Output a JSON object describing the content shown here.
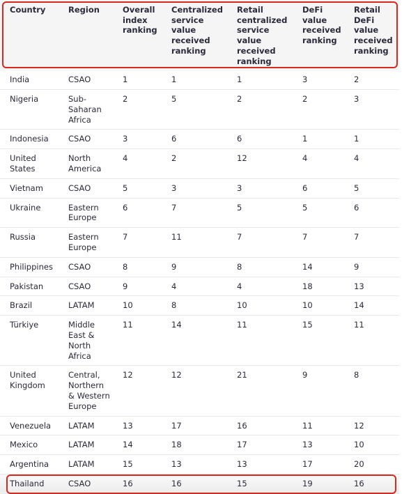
{
  "table": {
    "headers": [
      "Country",
      "Region",
      "Overall index ranking",
      "Centralized service value received ranking",
      "Retail centralized service value received ranking",
      "DeFi value received ranking",
      "Retail DeFi value received ranking"
    ],
    "rows": [
      [
        "India",
        "CSAO",
        "1",
        "1",
        "1",
        "3",
        "2"
      ],
      [
        "Nigeria",
        "Sub-Saharan Africa",
        "2",
        "5",
        "2",
        "2",
        "3"
      ],
      [
        "Indonesia",
        "CSAO",
        "3",
        "6",
        "6",
        "1",
        "1"
      ],
      [
        "United States",
        "North America",
        "4",
        "2",
        "12",
        "4",
        "4"
      ],
      [
        "Vietnam",
        "CSAO",
        "5",
        "3",
        "3",
        "6",
        "5"
      ],
      [
        "Ukraine",
        "Eastern Europe",
        "6",
        "7",
        "5",
        "5",
        "6"
      ],
      [
        "Russia",
        "Eastern Europe",
        "7",
        "11",
        "7",
        "7",
        "7"
      ],
      [
        "Philippines",
        "CSAO",
        "8",
        "9",
        "8",
        "14",
        "9"
      ],
      [
        "Pakistan",
        "CSAO",
        "9",
        "4",
        "4",
        "18",
        "13"
      ],
      [
        "Brazil",
        "LATAM",
        "10",
        "8",
        "10",
        "10",
        "14"
      ],
      [
        "Türkiye",
        "Middle East & North Africa",
        "11",
        "14",
        "11",
        "15",
        "11"
      ],
      [
        "United Kingdom",
        "Central, Northern & Western Europe",
        "12",
        "12",
        "21",
        "9",
        "8"
      ],
      [
        "Venezuela",
        "LATAM",
        "13",
        "17",
        "16",
        "11",
        "12"
      ],
      [
        "Mexico",
        "LATAM",
        "14",
        "18",
        "17",
        "13",
        "10"
      ],
      [
        "Argentina",
        "LATAM",
        "15",
        "13",
        "13",
        "17",
        "20"
      ],
      [
        "Thailand",
        "CSAO",
        "16",
        "16",
        "15",
        "19",
        "16"
      ]
    ],
    "highlighted_row": "Thailand"
  },
  "colors": {
    "highlight_border": "#d8291d",
    "header_bg": "#f5f5f6"
  }
}
